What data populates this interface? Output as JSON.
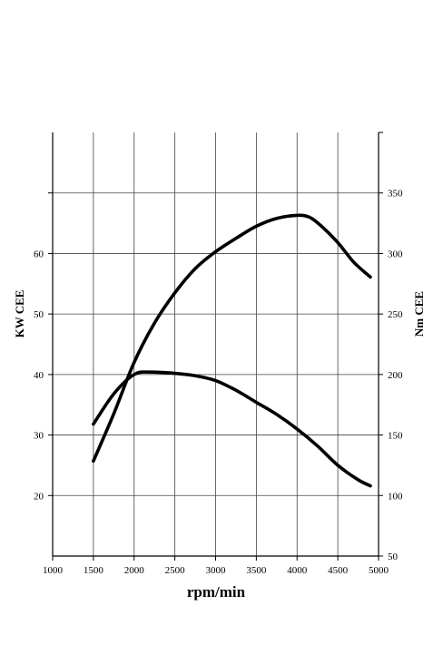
{
  "chart_data": {
    "type": "line",
    "xlabel": "rpm/min",
    "ylabel_left": "KW  CEE",
    "ylabel_right": "Nm  CEE",
    "xlim": [
      1000,
      5000
    ],
    "ylim_left": [
      10,
      80
    ],
    "ylim_right": [
      50,
      400
    ],
    "x_ticks": [
      1000,
      1500,
      2000,
      2500,
      3000,
      3500,
      4000,
      4500,
      5000
    ],
    "y_left_ticks": [
      20,
      30,
      40,
      50,
      60
    ],
    "y_right_ticks": [
      50,
      100,
      150,
      200,
      250,
      300,
      350
    ],
    "grid": true,
    "series": [
      {
        "axis": "left",
        "x": [
          1500,
          1750,
          2000,
          2250,
          2500,
          2750,
          3000,
          3250,
          3500,
          3750,
          4000,
          4150,
          4300,
          4500,
          4700,
          4900
        ],
        "values": [
          25.7,
          33.5,
          42.0,
          48.5,
          53.5,
          57.5,
          60.3,
          62.5,
          64.5,
          65.8,
          66.3,
          66.0,
          64.5,
          61.8,
          58.5,
          56.1
        ]
      },
      {
        "axis": "right",
        "x": [
          1500,
          1750,
          2000,
          2200,
          2500,
          2750,
          3000,
          3250,
          3500,
          3750,
          4000,
          4250,
          4500,
          4750,
          4900
        ],
        "values": [
          159,
          184,
          200,
          202,
          201,
          199,
          195,
          187,
          177,
          167,
          155,
          141,
          125,
          113,
          108
        ]
      }
    ]
  }
}
